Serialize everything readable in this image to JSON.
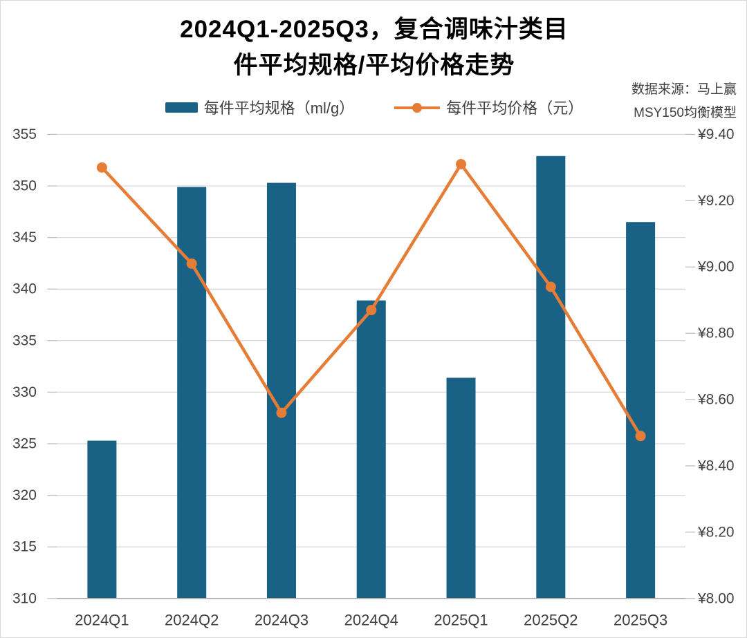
{
  "title": {
    "line1": "2024Q1-2025Q3，复合调味汁类目",
    "line2": "件平均规格/平均价格走势"
  },
  "source": {
    "line1": "数据来源：马上赢",
    "line2": "MSY150均衡模型"
  },
  "legend": [
    {
      "label": "每件平均规格（ml/g）",
      "type": "bar",
      "color": "#1A6285"
    },
    {
      "label": "每件平均价格（元）",
      "type": "line",
      "color": "#E67D37"
    }
  ],
  "colors": {
    "bar": "#1A6285",
    "line": "#E67D37",
    "grid": "#D9D9D9",
    "axis_line": "#A6A6A6",
    "tick": "#BFBFBF",
    "axis_text": "#404040"
  },
  "chart_data": {
    "type": "bar",
    "combo": true,
    "title": "2024Q1-2025Q3，复合调味汁类目 件平均规格/平均价格走势",
    "categories": [
      "2024Q1",
      "2024Q2",
      "2024Q3",
      "2024Q4",
      "2025Q1",
      "2025Q2",
      "2025Q3"
    ],
    "series": [
      {
        "name": "每件平均规格（ml/g）",
        "type": "bar",
        "axis": "left",
        "color": "#1A6285",
        "values": [
          325.3,
          349.9,
          350.3,
          338.9,
          331.4,
          352.9,
          346.5
        ]
      },
      {
        "name": "每件平均价格（元）",
        "type": "line",
        "axis": "right",
        "color": "#E67D37",
        "values": [
          9.3,
          9.01,
          8.56,
          8.87,
          9.31,
          8.94,
          8.49
        ]
      }
    ],
    "left_axis": {
      "min": 310,
      "max": 355,
      "step": 5,
      "tick_labels": [
        "355",
        "350",
        "345",
        "340",
        "335",
        "330",
        "325",
        "320",
        "315",
        "310"
      ]
    },
    "right_axis": {
      "min": 8.0,
      "max": 9.4,
      "step": 0.2,
      "tick_labels": [
        "¥9.40",
        "¥9.20",
        "¥9.00",
        "¥8.80",
        "¥8.60",
        "¥8.40",
        "¥8.20",
        "¥8.00"
      ]
    },
    "grid": true,
    "legend_position": "top"
  }
}
